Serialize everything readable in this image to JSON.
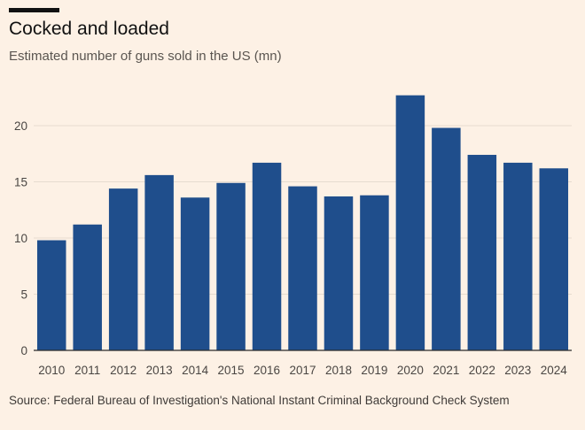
{
  "header": {
    "title": "Cocked and loaded",
    "subtitle": "Estimated number of guns sold in the US (mn)"
  },
  "footer": {
    "source": "Source: Federal Bureau of Investigation's National Instant Criminal Background Check System"
  },
  "colors": {
    "background": "#fdf1e5",
    "bar": "#1f4e8c",
    "grid": "#e6dccf",
    "baseline": "#2b2b2b"
  },
  "chart_data": {
    "type": "bar",
    "categories": [
      "2010",
      "2011",
      "2012",
      "2013",
      "2014",
      "2015",
      "2016",
      "2017",
      "2018",
      "2019",
      "2020",
      "2021",
      "2022",
      "2023",
      "2024"
    ],
    "values": [
      9.8,
      11.2,
      14.4,
      15.6,
      13.6,
      14.9,
      16.7,
      14.6,
      13.7,
      13.8,
      22.7,
      19.8,
      17.4,
      16.7,
      16.2
    ],
    "ylim": [
      0,
      24
    ],
    "yticks": [
      0,
      5,
      10,
      15,
      20
    ],
    "grid": true
  }
}
